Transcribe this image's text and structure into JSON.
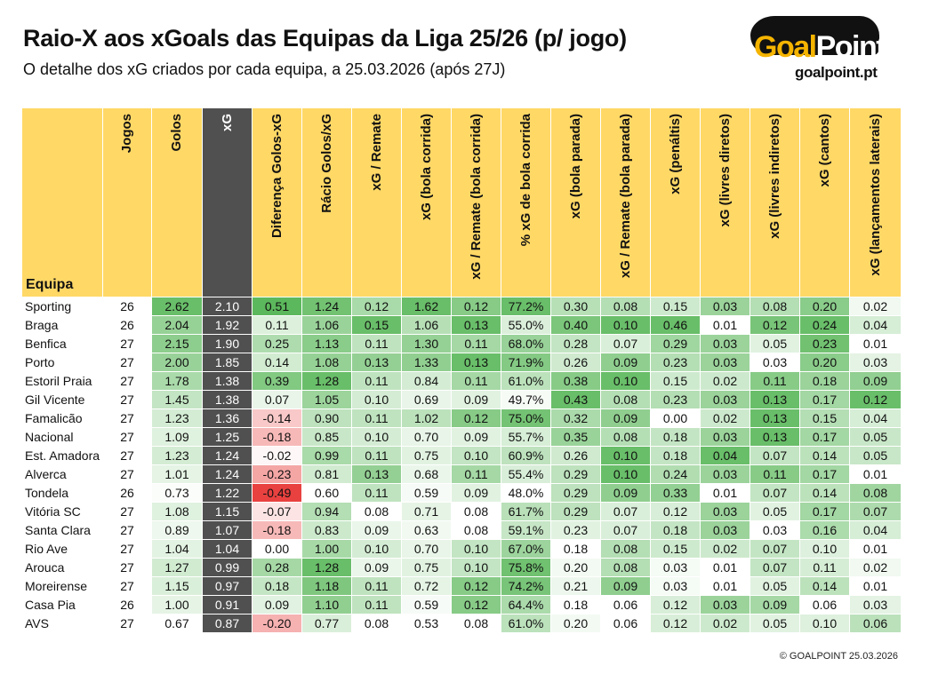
{
  "header": {
    "title": "Raio-X aos xGoals das Equipas da Liga 25/26 (p/ jogo)",
    "subtitle": "O detalhe dos xG criados por cada equipa, a 25.03.2026 (após 27J)"
  },
  "logo": {
    "name_part1": "Goal",
    "name_part2": "Point",
    "url": "goalpoint.pt"
  },
  "footer": {
    "credit": "© GOALPOINT 25.03.2026"
  },
  "colors": {
    "header_bg": "#ffd866",
    "xg_col": "#505050",
    "positive": "#5cb85c",
    "negative": "#e8413f"
  },
  "chart_data": {
    "type": "table",
    "columns": [
      "Equipa",
      "Jogos",
      "Golos",
      "xG",
      "Diferença Golos-xG",
      "Rácio Golos/xG",
      "xG / Remate",
      "xG (bola corrida)",
      "xG / Remate (bola corrida)",
      "% xG de bola corrida",
      "xG (bola parada)",
      "xG / Remate (bola parada)",
      "xG (penáltis)",
      "xG (livres diretos)",
      "xG (livres indiretos)",
      "xG (cantos)",
      "xG (lançamentos laterais)"
    ],
    "rows": [
      [
        "Sporting",
        "26",
        "2.62",
        "2.10",
        "0.51",
        "1.24",
        "0.12",
        "1.62",
        "0.12",
        "77.2%",
        "0.30",
        "0.08",
        "0.15",
        "0.03",
        "0.08",
        "0.20",
        "0.02"
      ],
      [
        "Braga",
        "26",
        "2.04",
        "1.92",
        "0.11",
        "1.06",
        "0.15",
        "1.06",
        "0.13",
        "55.0%",
        "0.40",
        "0.10",
        "0.46",
        "0.01",
        "0.12",
        "0.24",
        "0.04"
      ],
      [
        "Benfica",
        "27",
        "2.15",
        "1.90",
        "0.25",
        "1.13",
        "0.11",
        "1.30",
        "0.11",
        "68.0%",
        "0.28",
        "0.07",
        "0.29",
        "0.03",
        "0.05",
        "0.23",
        "0.01"
      ],
      [
        "Porto",
        "27",
        "2.00",
        "1.85",
        "0.14",
        "1.08",
        "0.13",
        "1.33",
        "0.13",
        "71.9%",
        "0.26",
        "0.09",
        "0.23",
        "0.03",
        "0.03",
        "0.20",
        "0.03"
      ],
      [
        "Estoril Praia",
        "27",
        "1.78",
        "1.38",
        "0.39",
        "1.28",
        "0.11",
        "0.84",
        "0.11",
        "61.0%",
        "0.38",
        "0.10",
        "0.15",
        "0.02",
        "0.11",
        "0.18",
        "0.09"
      ],
      [
        "Gil Vicente",
        "27",
        "1.45",
        "1.38",
        "0.07",
        "1.05",
        "0.10",
        "0.69",
        "0.09",
        "49.7%",
        "0.43",
        "0.08",
        "0.23",
        "0.03",
        "0.13",
        "0.17",
        "0.12"
      ],
      [
        "Famalicão",
        "27",
        "1.23",
        "1.36",
        "-0.14",
        "0.90",
        "0.11",
        "1.02",
        "0.12",
        "75.0%",
        "0.32",
        "0.09",
        "0.00",
        "0.02",
        "0.13",
        "0.15",
        "0.04"
      ],
      [
        "Nacional",
        "27",
        "1.09",
        "1.25",
        "-0.18",
        "0.85",
        "0.10",
        "0.70",
        "0.09",
        "55.7%",
        "0.35",
        "0.08",
        "0.18",
        "0.03",
        "0.13",
        "0.17",
        "0.05"
      ],
      [
        "Est. Amadora",
        "27",
        "1.23",
        "1.24",
        "-0.02",
        "0.99",
        "0.11",
        "0.75",
        "0.10",
        "60.9%",
        "0.26",
        "0.10",
        "0.18",
        "0.04",
        "0.07",
        "0.14",
        "0.05"
      ],
      [
        "Alverca",
        "27",
        "1.01",
        "1.24",
        "-0.23",
        "0.81",
        "0.13",
        "0.68",
        "0.11",
        "55.4%",
        "0.29",
        "0.10",
        "0.24",
        "0.03",
        "0.11",
        "0.17",
        "0.01"
      ],
      [
        "Tondela",
        "26",
        "0.73",
        "1.22",
        "-0.49",
        "0.60",
        "0.11",
        "0.59",
        "0.09",
        "48.0%",
        "0.29",
        "0.09",
        "0.33",
        "0.01",
        "0.07",
        "0.14",
        "0.08"
      ],
      [
        "Vitória SC",
        "27",
        "1.08",
        "1.15",
        "-0.07",
        "0.94",
        "0.08",
        "0.71",
        "0.08",
        "61.7%",
        "0.29",
        "0.07",
        "0.12",
        "0.03",
        "0.05",
        "0.17",
        "0.07"
      ],
      [
        "Santa Clara",
        "27",
        "0.89",
        "1.07",
        "-0.18",
        "0.83",
        "0.09",
        "0.63",
        "0.08",
        "59.1%",
        "0.23",
        "0.07",
        "0.18",
        "0.03",
        "0.03",
        "0.16",
        "0.04"
      ],
      [
        "Rio Ave",
        "27",
        "1.04",
        "1.04",
        "0.00",
        "1.00",
        "0.10",
        "0.70",
        "0.10",
        "67.0%",
        "0.18",
        "0.08",
        "0.15",
        "0.02",
        "0.07",
        "0.10",
        "0.01"
      ],
      [
        "Arouca",
        "27",
        "1.27",
        "0.99",
        "0.28",
        "1.28",
        "0.09",
        "0.75",
        "0.10",
        "75.8%",
        "0.20",
        "0.08",
        "0.03",
        "0.01",
        "0.07",
        "0.11",
        "0.02"
      ],
      [
        "Moreirense",
        "27",
        "1.15",
        "0.97",
        "0.18",
        "1.18",
        "0.11",
        "0.72",
        "0.12",
        "74.2%",
        "0.21",
        "0.09",
        "0.03",
        "0.01",
        "0.05",
        "0.14",
        "0.01"
      ],
      [
        "Casa Pia",
        "26",
        "1.00",
        "0.91",
        "0.09",
        "1.10",
        "0.11",
        "0.59",
        "0.12",
        "64.4%",
        "0.18",
        "0.06",
        "0.12",
        "0.03",
        "0.09",
        "0.06",
        "0.03"
      ],
      [
        "AVS",
        "27",
        "0.67",
        "0.87",
        "-0.20",
        "0.77",
        "0.08",
        "0.53",
        "0.08",
        "61.0%",
        "0.20",
        "0.06",
        "0.12",
        "0.02",
        "0.05",
        "0.10",
        "0.06"
      ]
    ]
  }
}
